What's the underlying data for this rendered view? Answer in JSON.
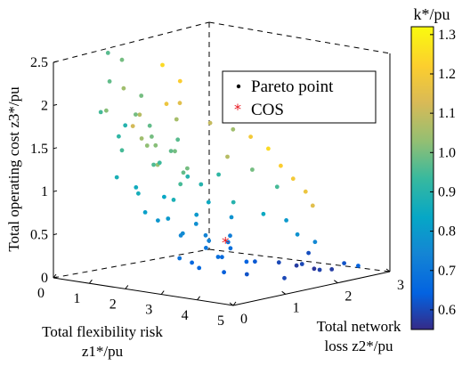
{
  "chart_data": {
    "type": "scatter",
    "title": "",
    "axes": {
      "x": {
        "label_line1": "Total flexibility risk",
        "label_line2": "z1*/pu",
        "range": [
          0,
          5
        ],
        "ticks": [
          "0",
          "1",
          "2",
          "3",
          "4",
          "5"
        ]
      },
      "y": {
        "label_line1": "Total network",
        "label_line2": "loss z2*/pu",
        "range": [
          0,
          3
        ],
        "ticks": [
          "0",
          "1",
          "2",
          "3"
        ]
      },
      "z": {
        "label": "Total operating cost z3*/pu",
        "range": [
          0,
          2.5
        ],
        "ticks": [
          "0",
          "0.5",
          "1",
          "1.5",
          "2",
          "2.5"
        ]
      }
    },
    "colorbar": {
      "label": "k*/pu",
      "range": [
        0.55,
        1.32
      ],
      "ticks": [
        "0.6",
        "0.7",
        "0.8",
        "0.9",
        "1.0",
        "1.1",
        "1.2",
        "1.3"
      ],
      "colormap": "parula"
    },
    "legend": {
      "placement": "top-right",
      "entries": [
        {
          "label": "Pareto point",
          "marker": "dot",
          "color": "#000000"
        },
        {
          "label": "COS",
          "marker": "star",
          "color": "#e8141c"
        }
      ]
    },
    "series": [
      {
        "name": "Pareto point",
        "note_fields": [
          "z1",
          "z2",
          "z3",
          "k"
        ],
        "points": [
          [
            0.5,
            0.7,
            2.55,
            0.97
          ],
          [
            0.6,
            0.9,
            2.45,
            1.0
          ],
          [
            0.4,
            0.8,
            2.2,
            0.98
          ],
          [
            0.5,
            1.0,
            2.1,
            1.05
          ],
          [
            0.7,
            1.2,
            2.0,
            1.0
          ],
          [
            0.6,
            0.6,
            1.9,
            1.02
          ],
          [
            0.3,
            0.7,
            1.85,
            0.95
          ],
          [
            0.8,
            1.1,
            1.8,
            1.08
          ],
          [
            0.4,
            1.3,
            1.75,
            1.0
          ],
          [
            0.9,
            0.9,
            1.7,
            1.12
          ],
          [
            0.5,
            1.5,
            1.6,
            0.98
          ],
          [
            1.0,
            1.0,
            1.55,
            1.05
          ],
          [
            0.7,
            1.4,
            1.5,
            1.0
          ],
          [
            1.1,
            1.2,
            1.45,
            1.02
          ],
          [
            0.6,
            0.9,
            1.4,
            0.95
          ],
          [
            1.2,
            1.5,
            1.35,
            1.0
          ],
          [
            0.8,
            1.7,
            1.3,
            0.98
          ],
          [
            1.3,
            1.1,
            1.25,
            1.04
          ],
          [
            0.9,
            1.3,
            1.2,
            0.96
          ],
          [
            1.4,
            1.6,
            1.15,
            1.0
          ],
          [
            0.6,
            0.8,
            1.1,
            0.88
          ],
          [
            1.0,
            1.8,
            1.05,
            0.98
          ],
          [
            1.5,
            1.4,
            1.0,
            0.95
          ],
          [
            0.7,
            1.1,
            0.95,
            0.86
          ],
          [
            1.2,
            2.0,
            0.9,
            0.9
          ],
          [
            1.6,
            1.2,
            0.85,
            0.88
          ],
          [
            0.9,
            1.5,
            0.8,
            0.84
          ],
          [
            1.7,
            1.8,
            0.75,
            0.85
          ],
          [
            1.1,
            1.0,
            0.7,
            0.82
          ],
          [
            1.8,
            1.5,
            0.65,
            0.8
          ],
          [
            1.3,
            1.3,
            0.6,
            0.8
          ],
          [
            1.9,
            2.1,
            0.55,
            0.78
          ],
          [
            1.5,
            1.7,
            0.5,
            0.77
          ],
          [
            2.0,
            1.1,
            0.5,
            0.76
          ],
          [
            2.2,
            1.4,
            0.45,
            0.74
          ],
          [
            2.3,
            1.8,
            0.4,
            0.72
          ],
          [
            2.5,
            1.2,
            0.35,
            0.7
          ],
          [
            2.1,
            1.9,
            0.3,
            0.7
          ],
          [
            2.6,
            1.6,
            0.3,
            0.68
          ],
          [
            2.8,
            1.3,
            0.25,
            0.67
          ],
          [
            2.4,
            1.0,
            0.2,
            0.66
          ],
          [
            2.9,
            1.7,
            0.15,
            0.65
          ],
          [
            3.0,
            1.2,
            0.1,
            0.64
          ],
          [
            2.7,
            2.0,
            0.1,
            0.63
          ],
          [
            3.2,
            1.5,
            0.05,
            0.62
          ],
          [
            1.0,
            1.4,
            2.35,
            1.25
          ],
          [
            1.2,
            1.6,
            2.15,
            1.22
          ],
          [
            1.4,
            1.2,
            1.95,
            1.18
          ],
          [
            0.9,
            1.8,
            1.85,
            1.15
          ],
          [
            1.6,
            1.9,
            1.65,
            1.1
          ],
          [
            1.8,
            2.2,
            1.55,
            1.05
          ],
          [
            2.0,
            2.4,
            1.45,
            1.2
          ],
          [
            2.2,
            2.6,
            1.3,
            1.25
          ],
          [
            2.4,
            2.7,
            1.1,
            1.22
          ],
          [
            2.6,
            2.8,
            0.95,
            1.2
          ],
          [
            2.8,
            2.9,
            0.8,
            1.18
          ],
          [
            3.0,
            2.9,
            0.65,
            1.15
          ],
          [
            1.5,
            2.3,
            1.2,
            1.08
          ],
          [
            1.9,
            2.5,
            1.05,
            1.0
          ],
          [
            2.3,
            2.7,
            0.85,
            0.95
          ],
          [
            2.1,
            2.0,
            0.75,
            0.9
          ],
          [
            2.5,
            2.3,
            0.6,
            0.85
          ],
          [
            2.7,
            2.6,
            0.5,
            0.8
          ],
          [
            3.3,
            2.4,
            0.4,
            0.78
          ],
          [
            3.5,
            2.6,
            0.3,
            0.75
          ],
          [
            3.8,
            1.7,
            0.2,
            0.6
          ],
          [
            4.0,
            1.9,
            0.15,
            0.58
          ],
          [
            4.2,
            2.1,
            0.1,
            0.57
          ],
          [
            4.4,
            2.3,
            0.08,
            0.58
          ],
          [
            4.1,
            1.6,
            0.05,
            0.6
          ],
          [
            4.5,
            2.0,
            0.12,
            0.59
          ],
          [
            4.3,
            1.8,
            0.2,
            0.6
          ],
          [
            3.9,
            2.2,
            0.25,
            0.61
          ],
          [
            4.6,
            2.4,
            0.15,
            0.62
          ],
          [
            4.7,
            2.6,
            0.1,
            0.65
          ],
          [
            0.4,
            1.1,
            1.65,
            0.9
          ],
          [
            0.8,
            0.7,
            1.6,
            0.92
          ],
          [
            1.1,
            1.6,
            1.7,
            1.06
          ],
          [
            1.3,
            0.9,
            1.5,
            1.03
          ],
          [
            0.7,
            1.9,
            1.4,
            0.97
          ],
          [
            1.5,
            1.0,
            1.3,
            0.94
          ],
          [
            1.7,
            1.4,
            1.1,
            0.9
          ],
          [
            1.2,
            0.8,
            0.95,
            0.87
          ],
          [
            1.4,
            2.2,
            1.0,
            0.92
          ],
          [
            1.6,
            0.9,
            0.65,
            0.79
          ],
          [
            1.8,
            1.2,
            0.45,
            0.75
          ],
          [
            2.0,
            1.6,
            0.35,
            0.73
          ],
          [
            2.2,
            0.9,
            0.25,
            0.69
          ],
          [
            2.4,
            1.5,
            0.2,
            0.68
          ],
          [
            2.6,
            1.0,
            0.15,
            0.66
          ]
        ]
      },
      {
        "name": "COS",
        "points": [
          [
            2.55,
            1.55,
            0.4,
            0.75
          ]
        ]
      }
    ],
    "grid": false
  }
}
